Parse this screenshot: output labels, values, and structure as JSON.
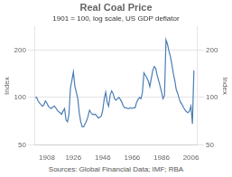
{
  "chart_data": {
    "type": "line",
    "title": "Real Coal Price",
    "subtitle": "1901 = 100, log scale, US GDP deflator",
    "source": "Sources: Global Financial Data; IMF; RBA",
    "ylabel": "Index",
    "y2label": "Index",
    "x": [
      1900,
      1901,
      1902,
      1903,
      1904,
      1905,
      1906,
      1907,
      1908,
      1909,
      1910,
      1911,
      1912,
      1913,
      1914,
      1915,
      1916,
      1917,
      1918,
      1919,
      1920,
      1921,
      1922,
      1923,
      1924,
      1925,
      1926,
      1927,
      1928,
      1929,
      1930,
      1931,
      1932,
      1933,
      1934,
      1935,
      1936,
      1937,
      1938,
      1939,
      1940,
      1941,
      1942,
      1943,
      1944,
      1945,
      1946,
      1947,
      1948,
      1949,
      1950,
      1951,
      1952,
      1953,
      1954,
      1955,
      1956,
      1957,
      1958,
      1959,
      1960,
      1961,
      1962,
      1963,
      1964,
      1965,
      1966,
      1967,
      1968,
      1969,
      1970,
      1971,
      1972,
      1973,
      1974,
      1975,
      1976,
      1977,
      1978,
      1979,
      1980,
      1981,
      1982,
      1983,
      1984,
      1985,
      1986,
      1987,
      1988,
      1989,
      1990,
      1991,
      1992,
      1993,
      1994,
      1995,
      1996,
      1997,
      1998,
      1999,
      2000,
      2001,
      2002,
      2003,
      2004,
      2005,
      2006,
      2007,
      2008
    ],
    "values": [
      100,
      100,
      95,
      92,
      90,
      88,
      90,
      95,
      92,
      88,
      86,
      85,
      87,
      88,
      86,
      83,
      81,
      80,
      78,
      82,
      85,
      72,
      70,
      78,
      115,
      128,
      145,
      118,
      108,
      98,
      80,
      70,
      65,
      65,
      68,
      71,
      76,
      83,
      80,
      78,
      78,
      78,
      76,
      74,
      75,
      76,
      83,
      98,
      108,
      93,
      88,
      103,
      110,
      106,
      98,
      96,
      98,
      100,
      97,
      93,
      88,
      86,
      86,
      85,
      85,
      86,
      85,
      86,
      86,
      93,
      97,
      100,
      98,
      108,
      143,
      138,
      133,
      127,
      117,
      132,
      148,
      157,
      153,
      138,
      128,
      118,
      108,
      98,
      103,
      232,
      218,
      197,
      182,
      162,
      142,
      128,
      112,
      106,
      98,
      93,
      90,
      86,
      83,
      81,
      80,
      82,
      88,
      68,
      148
    ],
    "color": "#4a7db5",
    "xlim": [
      1900,
      2010
    ],
    "xticks": [
      1908,
      1926,
      1946,
      1966,
      1986,
      2006
    ],
    "ylim": [
      50,
      280
    ],
    "yticks": [
      50,
      100,
      200
    ],
    "y2lim": [
      50,
      280
    ],
    "y2ticks": [
      50,
      100,
      200
    ],
    "log": "y",
    "grid": "y"
  }
}
